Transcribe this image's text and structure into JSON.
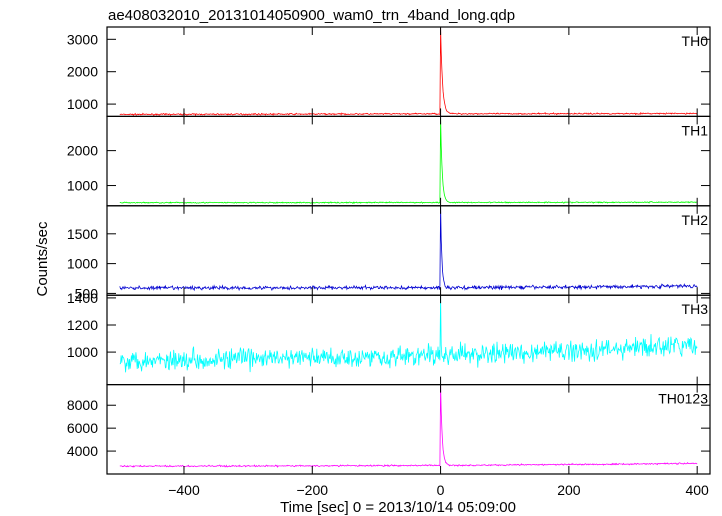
{
  "title": "ae408032010_20131014050900_wam0_trn_4band_long.qdp",
  "ylabel": "Counts/sec",
  "xlabel": "Time [sec] 0 = 2013/10/14 05:09:00",
  "chart_data": {
    "type": "line",
    "title": "ae408032010_20131014050900_wam0_trn_4band_long.qdp",
    "xlabel": "Time [sec] 0 = 2013/10/14 05:09:00",
    "ylabel": "Counts/sec",
    "xlim": [
      -520,
      420
    ],
    "xticks": [
      -400,
      -200,
      0,
      200,
      400
    ],
    "grid": false,
    "panels": [
      {
        "name": "TH0",
        "color": "#ff0000",
        "ylim": [
          620,
          3380
        ],
        "yticks": [
          1000,
          2000,
          3000
        ],
        "baseline": {
          "x": [
            -500,
            -250,
            0,
            250,
            400
          ],
          "y": [
            680,
            690,
            700,
            705,
            710
          ]
        },
        "noise": 15,
        "burst": {
          "t0": 0,
          "peak": 3350,
          "decay_sec": 3
        }
      },
      {
        "name": "TH1",
        "color": "#00ff00",
        "ylim": [
          420,
          2980
        ],
        "yticks": [
          1000,
          2000
        ],
        "baseline": {
          "x": [
            -500,
            -250,
            0,
            250,
            400
          ],
          "y": [
            510,
            510,
            515,
            520,
            525
          ]
        },
        "noise": 12,
        "burst": {
          "t0": 0,
          "peak": 2950,
          "decay_sec": 2.5
        }
      },
      {
        "name": "TH2",
        "color": "#0000d0",
        "ylim": [
          470,
          1970
        ],
        "yticks": [
          500,
          1000,
          1500
        ],
        "baseline": {
          "x": [
            -500,
            -250,
            0,
            250,
            400
          ],
          "y": [
            590,
            595,
            595,
            610,
            625
          ]
        },
        "noise": 22,
        "burst": {
          "t0": 0,
          "peak": 1950,
          "decay_sec": 2
        }
      },
      {
        "name": "TH3",
        "color": "#00ffff",
        "ylim": [
          760,
          1420
        ],
        "yticks": [
          1000,
          1200,
          1400
        ],
        "baseline": {
          "x": [
            -500,
            -250,
            0,
            200,
            400
          ],
          "y": [
            940,
            955,
            975,
            1010,
            1050
          ]
        },
        "noise": 55,
        "burst": {
          "t0": 0,
          "peak": 1420,
          "decay_sec": 0.5
        }
      },
      {
        "name": "TH0123",
        "color": "#ff00ff",
        "ylim": [
          2000,
          9800
        ],
        "yticks": [
          4000,
          6000,
          8000
        ],
        "baseline": {
          "x": [
            -500,
            -250,
            0,
            250,
            400
          ],
          "y": [
            2680,
            2700,
            2750,
            2850,
            2930
          ]
        },
        "noise": 45,
        "burst": {
          "t0": 0,
          "peak": 9800,
          "decay_sec": 2.5
        }
      }
    ]
  }
}
